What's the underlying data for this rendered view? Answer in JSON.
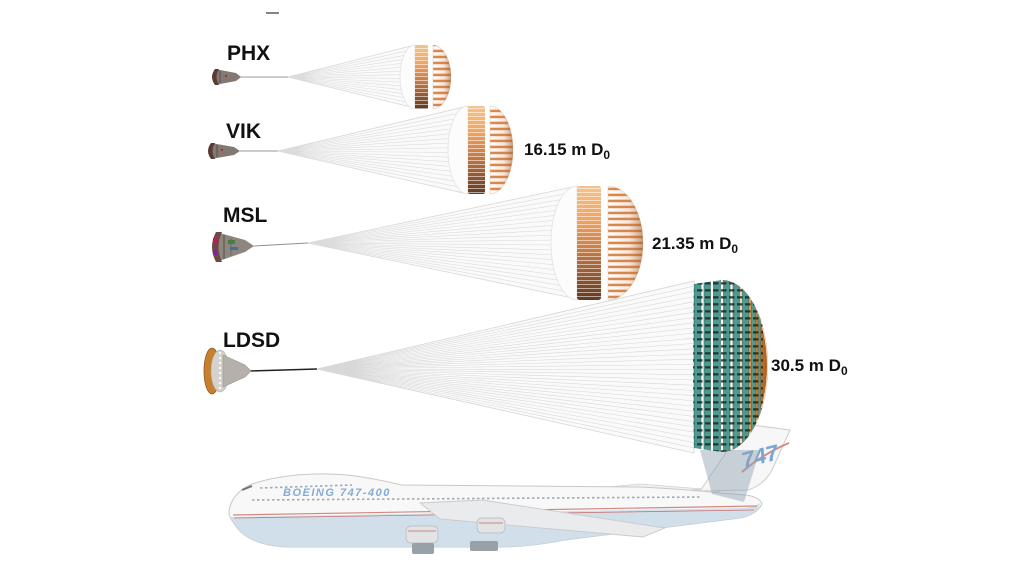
{
  "figure": {
    "stray_mark": "-",
    "rows": [
      {
        "mission": "PHX",
        "diameter": "",
        "diameter_sub": ""
      },
      {
        "mission": "VIK",
        "diameter": "16.15 m D",
        "diameter_sub": "0"
      },
      {
        "mission": "MSL",
        "diameter": "21.35 m D",
        "diameter_sub": "0"
      },
      {
        "mission": "LDSD",
        "diameter": "30.5 m D",
        "diameter_sub": "0"
      }
    ],
    "plane": {
      "title": "BOEING 747-400",
      "tail_logo": "747"
    },
    "colors": {
      "canopy_band_light": "#F4C48E",
      "canopy_band_dark": "#5F3B23",
      "canopy_gore_orange": "#D9884E",
      "ldsd_teal": "#4E9A90",
      "ldsd_orange": "#C77A33",
      "plane_belly_blue": "#C7D8E8",
      "plane_stripe_red": "#C0504D",
      "plane_title_blue": "#7CA3D4"
    }
  },
  "chart_data": {
    "type": "diagram-comparison",
    "title": "",
    "items": [
      {
        "mission": "PHX",
        "nominal_diameter_m": null
      },
      {
        "mission": "VIK",
        "nominal_diameter_m": 16.15
      },
      {
        "mission": "MSL",
        "nominal_diameter_m": 21.35
      },
      {
        "mission": "LDSD",
        "nominal_diameter_m": 30.5
      }
    ],
    "diameter_unit": "m D0",
    "scale_reference": "Boeing 747-400"
  }
}
